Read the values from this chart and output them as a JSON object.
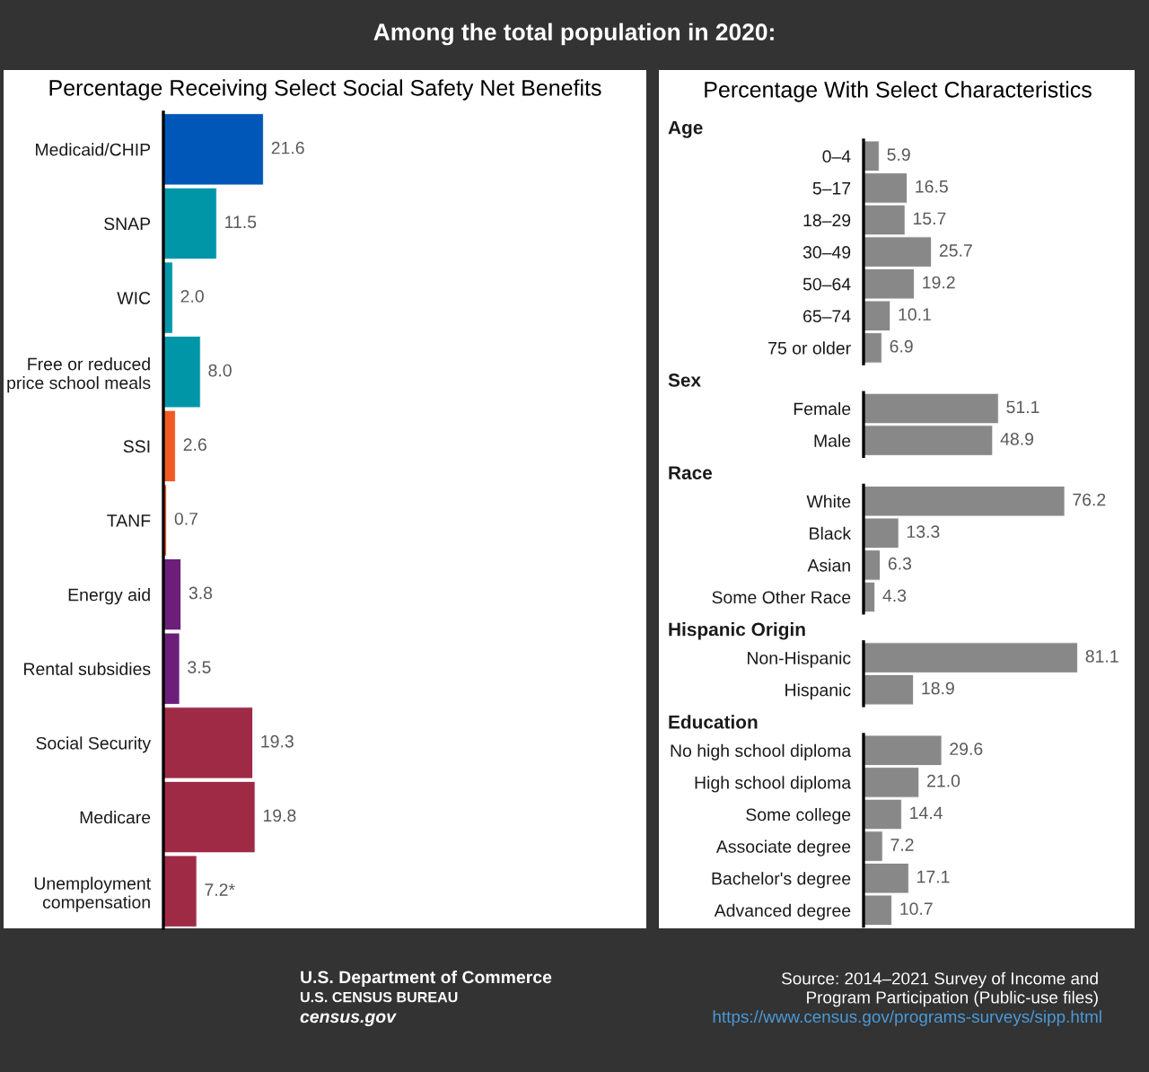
{
  "chart_data": [
    {
      "type": "bar",
      "orientation": "horizontal",
      "title": "Percentage Receiving Select Social Safety Net Benefits",
      "annotations": [
        "Among the total population in 2020:"
      ],
      "categories": [
        "Medicaid/CHIP",
        "SNAP",
        "WIC",
        "Free or reduced\nprice school meals",
        "SSI",
        "TANF",
        "Energy aid",
        "Rental subsidies",
        "Social Security",
        "Medicare",
        "Unemployment\ncompensation"
      ],
      "values": [
        21.6,
        11.5,
        2.0,
        8.0,
        2.6,
        0.7,
        3.8,
        3.5,
        19.3,
        19.8,
        7.2
      ],
      "colors": [
        "#0057b7",
        "#0096a8",
        "#0096a8",
        "#0096a8",
        "#f15a24",
        "#f15a24",
        "#6b1f7b",
        "#6b1f7b",
        "#9e2a46",
        "#9e2a46",
        "#9e2a46"
      ],
      "value_labels": [
        "21.6",
        "11.5",
        "2.0",
        "8.0",
        "2.6",
        "0.7",
        "3.8",
        "3.5",
        "19.3",
        "19.8",
        "7.2*"
      ]
    },
    {
      "type": "bar",
      "orientation": "horizontal",
      "title": "Percentage With Select Characteristics",
      "subtitle": "Age",
      "categories": [
        "0–4",
        "5–17",
        "18–29",
        "30–49",
        "50–64",
        "65–74",
        "75 or older"
      ],
      "values": [
        5.9,
        16.5,
        15.7,
        25.7,
        19.2,
        10.1,
        6.9
      ],
      "color": "#888888",
      "value_labels": [
        "5.9",
        "16.5",
        "15.7",
        "25.7",
        "19.2",
        "10.1",
        "6.9"
      ]
    },
    {
      "type": "bar",
      "orientation": "horizontal",
      "subtitle": "Sex",
      "categories": [
        "Female",
        "Male"
      ],
      "values": [
        51.1,
        48.9
      ],
      "color": "#888888",
      "value_labels": [
        "51.1",
        "48.9"
      ]
    },
    {
      "type": "bar",
      "orientation": "horizontal",
      "subtitle": "Race",
      "categories": [
        "White",
        "Black",
        "Asian",
        "Some Other Race"
      ],
      "values": [
        76.2,
        13.3,
        6.3,
        4.3
      ],
      "color": "#888888",
      "value_labels": [
        "76.2",
        "13.3",
        "6.3",
        "4.3"
      ]
    },
    {
      "type": "bar",
      "orientation": "horizontal",
      "subtitle": "Hispanic Origin",
      "categories": [
        "Non-Hispanic",
        "Hispanic"
      ],
      "values": [
        81.1,
        18.9
      ],
      "color": "#888888",
      "value_labels": [
        "81.1",
        "18.9"
      ]
    },
    {
      "type": "bar",
      "orientation": "horizontal",
      "subtitle": "Education",
      "categories": [
        "No high school diploma",
        "High school diploma",
        "Some college",
        "Associate degree",
        "Bachelor's degree",
        "Advanced degree"
      ],
      "values": [
        29.6,
        21.0,
        14.4,
        7.2,
        17.1,
        10.7
      ],
      "color": "#888888",
      "value_labels": [
        "29.6",
        "21.0",
        "14.4",
        "7.2",
        "17.1",
        "10.7"
      ]
    },
    {
      "type": "other",
      "annotations": [
        "U.S. Department of Commerce",
        "U.S. CENSUS BUREAU",
        "census.gov",
        "Source: 2014–2021 Survey of Income and\nProgram Participation (Public-use files)",
        "https://www.census.gov/programs-surveys/sipp.html"
      ]
    }
  ]
}
